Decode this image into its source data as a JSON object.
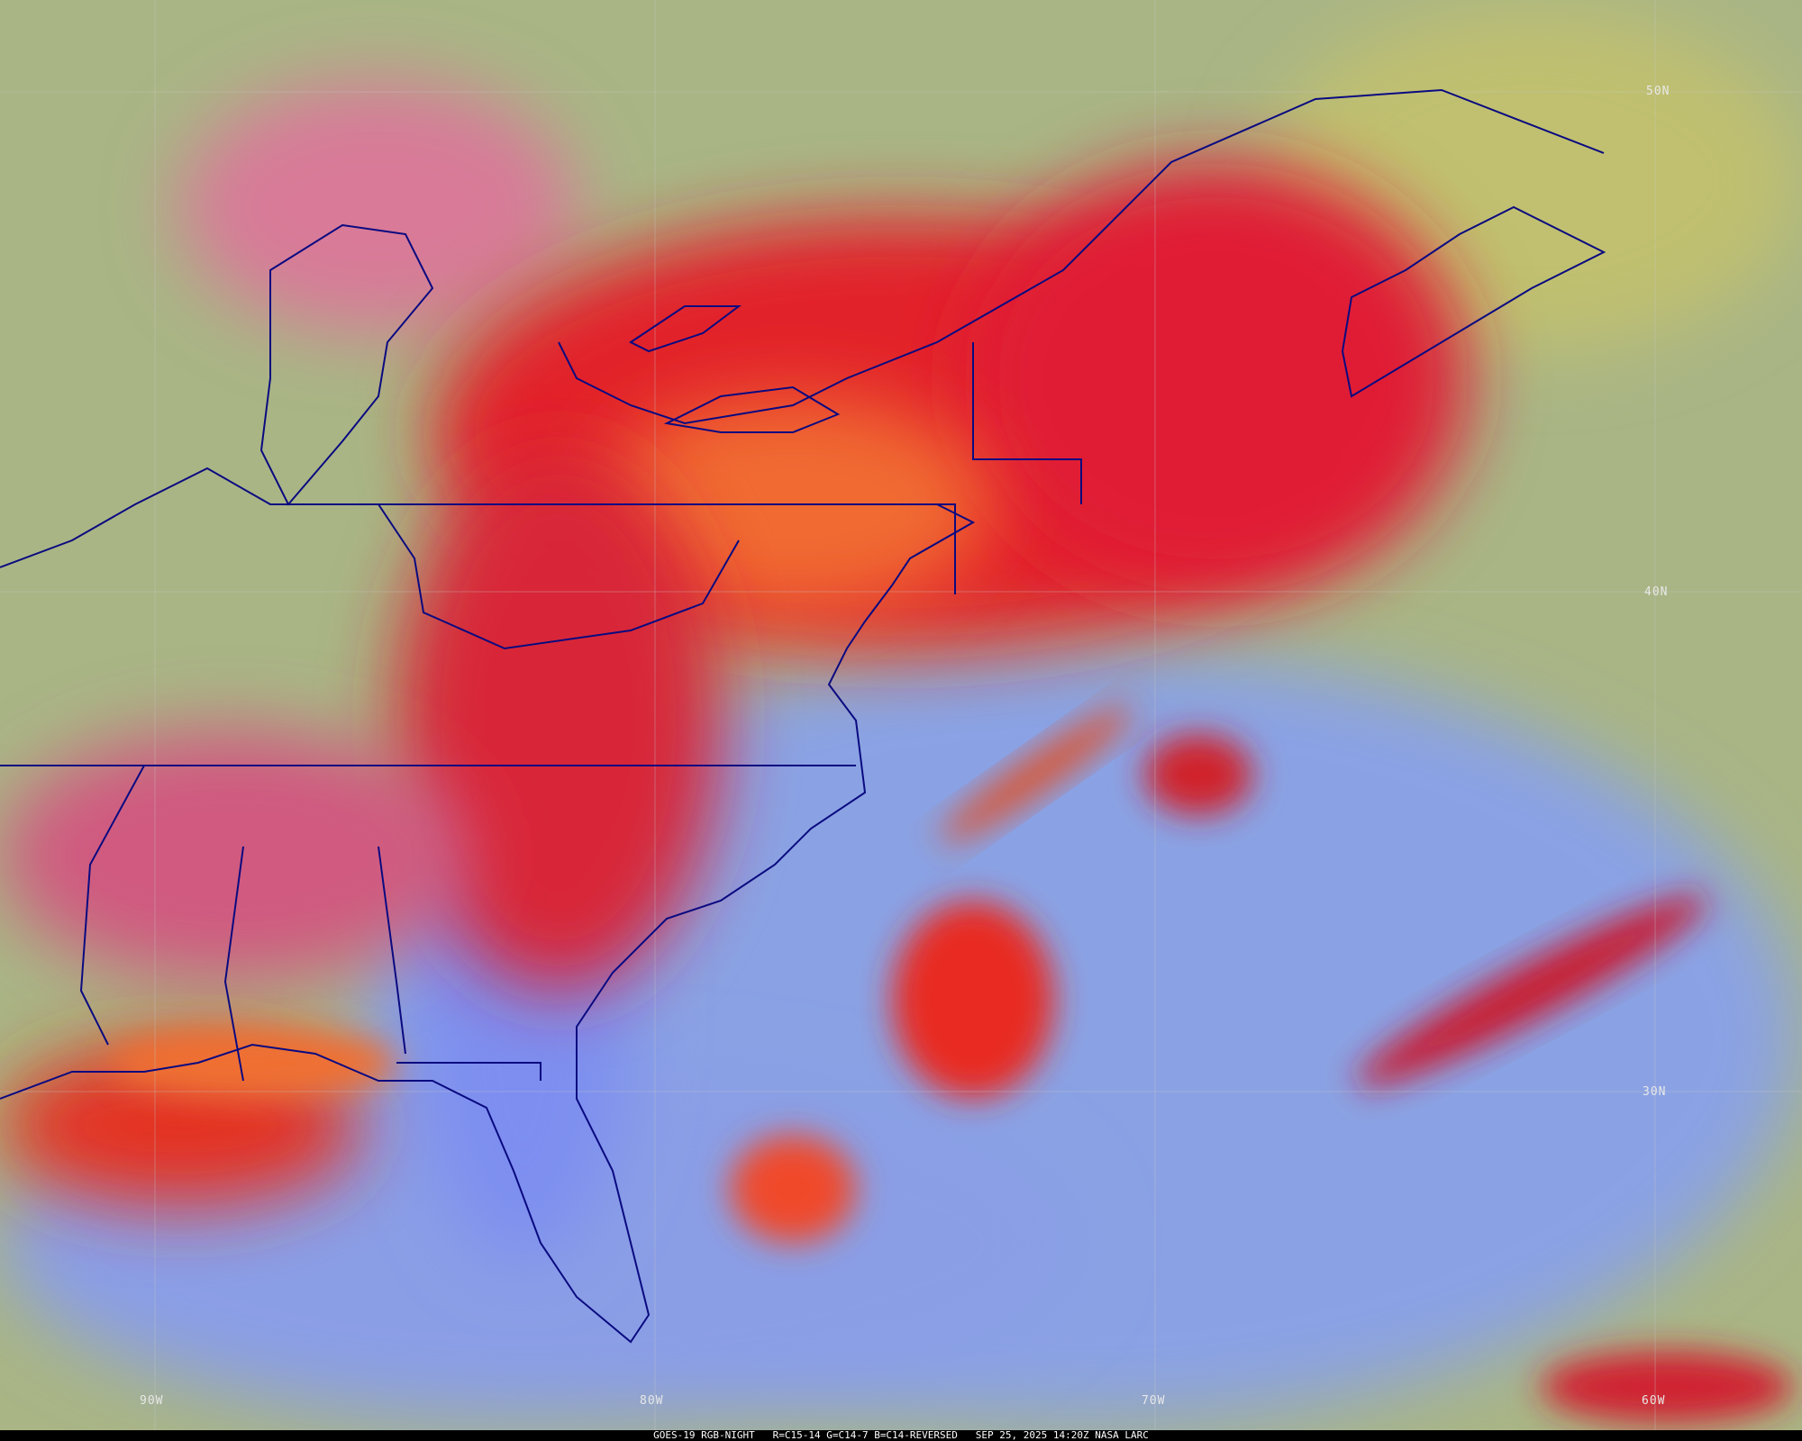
{
  "caption": "GOES-19 RGB-NIGHT   R=C15-14 G=C14-7 B=C14-REVERSED   SEP 25, 2025 14:20Z NASA LARC",
  "latitude_labels": [
    "50N",
    "40N",
    "30N"
  ],
  "longitude_labels": [
    "90W",
    "80W",
    "70W",
    "60W"
  ],
  "colors": {
    "land_clear": "#b4b87a",
    "cold_cloud_red": "#e0202c",
    "orange_cloud": "#f07a30",
    "ocean_low_cloud": "#8aa0e6",
    "magenta_cloud": "#d0507a",
    "borders": "#0a0a80",
    "graticule": "#c8c8c8"
  }
}
